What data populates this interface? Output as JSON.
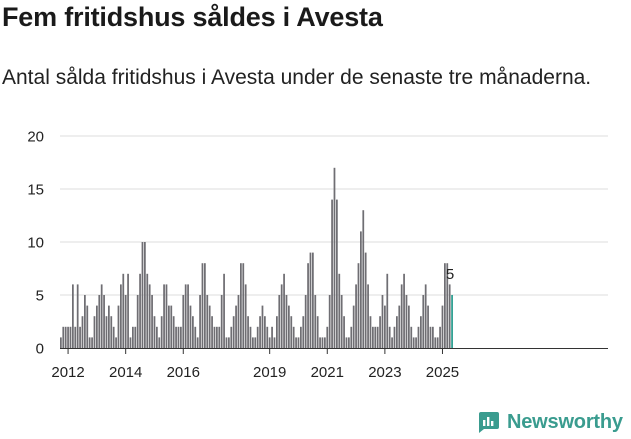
{
  "title": "Fem fritidshus såldes i Avesta",
  "subtitle": "Antal sålda fritidshus i Avesta under de senaste tre månaderna.",
  "brand": {
    "name": "Newsworthy",
    "icon": "newsworthy-logo-icon",
    "color": "#3a9c8f"
  },
  "chart_data": {
    "type": "bar",
    "title": "Fem fritidshus såldes i Avesta",
    "xlabel": "",
    "ylabel": "",
    "ylim": [
      0,
      20
    ],
    "yticks": [
      0,
      5,
      10,
      15,
      20
    ],
    "xtick_labels": [
      "2012",
      "2014",
      "2016",
      "2019",
      "2021",
      "2023",
      "2025"
    ],
    "xtick_positions": [
      2012,
      2014,
      2016,
      2019,
      2021,
      2023,
      2025
    ],
    "x_start": 2011.75,
    "bars_per_year": 12,
    "bar_color": "#6f6e73",
    "highlight_color": "#2a9d8f",
    "highlight_label": "5",
    "values": [
      1,
      2,
      2,
      2,
      2,
      6,
      2,
      6,
      2,
      3,
      5,
      4,
      1,
      1,
      3,
      4,
      5,
      6,
      5,
      3,
      4,
      3,
      2,
      1,
      4,
      6,
      7,
      5,
      7,
      1,
      2,
      2,
      5,
      7,
      10,
      10,
      7,
      6,
      5,
      3,
      2,
      1,
      3,
      6,
      6,
      4,
      4,
      3,
      2,
      2,
      2,
      5,
      6,
      6,
      4,
      3,
      2,
      1,
      5,
      8,
      8,
      5,
      4,
      3,
      2,
      2,
      2,
      5,
      7,
      1,
      1,
      2,
      3,
      4,
      5,
      8,
      8,
      6,
      3,
      2,
      1,
      1,
      2,
      3,
      4,
      3,
      2,
      1,
      2,
      1,
      3,
      5,
      6,
      7,
      5,
      4,
      3,
      2,
      1,
      1,
      2,
      3,
      5,
      8,
      9,
      9,
      5,
      3,
      1,
      1,
      1,
      2,
      5,
      14,
      17,
      14,
      7,
      5,
      3,
      1,
      1,
      2,
      4,
      6,
      8,
      11,
      13,
      9,
      6,
      3,
      2,
      2,
      2,
      3,
      5,
      4,
      7,
      2,
      1,
      2,
      3,
      4,
      6,
      7,
      5,
      4,
      2,
      1,
      1,
      2,
      3,
      5,
      6,
      4,
      2,
      2,
      1,
      1,
      2,
      4,
      8,
      8,
      6,
      5
    ]
  }
}
